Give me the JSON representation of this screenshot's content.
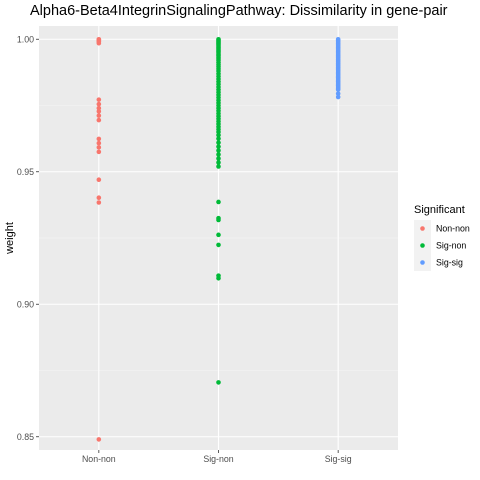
{
  "chart_data": {
    "type": "scatter",
    "title": "Alpha6-Beta4IntegrinSignalingPathway: Dissimilarity in gene-pair",
    "xlabel": "",
    "ylabel": "weight",
    "categories": [
      "Non-non",
      "Sig-non",
      "Sig-sig"
    ],
    "ylim": [
      0.845,
      1.005
    ],
    "yticks": [
      0.85,
      0.9,
      0.95,
      1.0
    ],
    "ytick_labels": [
      "0.85",
      "0.90",
      "0.95",
      "1.00"
    ],
    "grid": true,
    "background": "#EBEBEB",
    "legend": {
      "title": "Significant",
      "placement": "right",
      "entries": [
        {
          "label": "Non-non",
          "color": "#F8766D"
        },
        {
          "label": "Sig-non",
          "color": "#00BA38"
        },
        {
          "label": "Sig-sig",
          "color": "#619CFF"
        }
      ]
    },
    "series": [
      {
        "category": "Non-non",
        "color": "#F8766D",
        "values": [
          1.0,
          0.9998,
          0.9995,
          0.9992,
          0.999,
          0.9985,
          0.9772,
          0.9755,
          0.974,
          0.9728,
          0.9712,
          0.9695,
          0.9624,
          0.9608,
          0.9592,
          0.9575,
          0.947,
          0.9402,
          0.9384,
          0.849
        ]
      },
      {
        "category": "Sig-non",
        "color": "#00BA38",
        "values": [
          1.0,
          0.9996,
          0.9992,
          0.9988,
          0.9984,
          0.998,
          0.9975,
          0.997,
          0.9965,
          0.996,
          0.9955,
          0.995,
          0.9944,
          0.9938,
          0.9932,
          0.9926,
          0.992,
          0.9912,
          0.9904,
          0.9896,
          0.9888,
          0.988,
          0.987,
          0.986,
          0.985,
          0.984,
          0.983,
          0.982,
          0.981,
          0.98,
          0.979,
          0.978,
          0.977,
          0.976,
          0.975,
          0.974,
          0.973,
          0.972,
          0.971,
          0.97,
          0.969,
          0.968,
          0.967,
          0.966,
          0.965,
          0.9638,
          0.9625,
          0.961,
          0.9595,
          0.958,
          0.9565,
          0.955,
          0.9535,
          0.952,
          0.9386,
          0.9325,
          0.9318,
          0.9262,
          0.9224,
          0.9108,
          0.9098,
          0.8705
        ]
      },
      {
        "category": "Sig-sig",
        "color": "#619CFF",
        "values": [
          1.0,
          0.9995,
          0.999,
          0.9985,
          0.998,
          0.9975,
          0.997,
          0.9965,
          0.996,
          0.9955,
          0.995,
          0.9945,
          0.994,
          0.9935,
          0.993,
          0.9925,
          0.992,
          0.9915,
          0.991,
          0.9905,
          0.99,
          0.9895,
          0.989,
          0.9885,
          0.988,
          0.9875,
          0.987,
          0.9865,
          0.986,
          0.9855,
          0.985,
          0.9845,
          0.984,
          0.9835,
          0.983,
          0.9825,
          0.982,
          0.9815,
          0.981,
          0.9795,
          0.9782
        ]
      }
    ]
  }
}
